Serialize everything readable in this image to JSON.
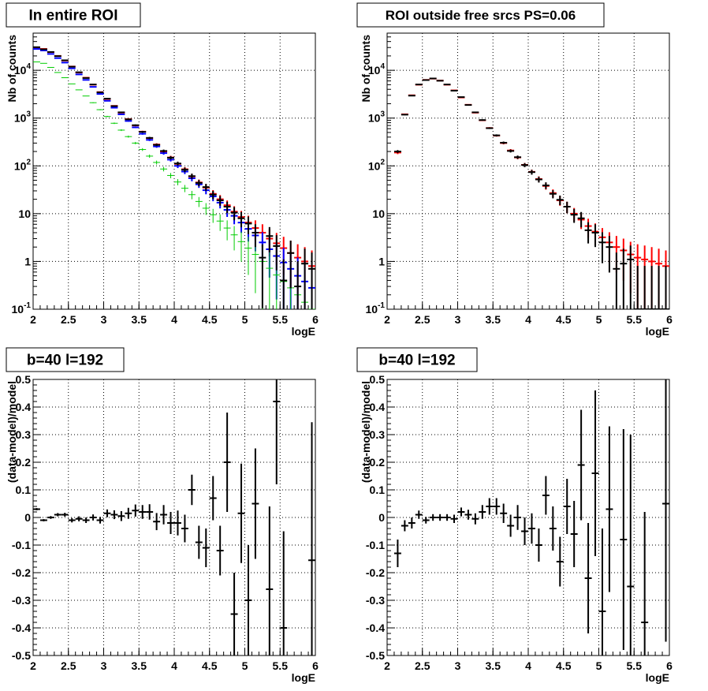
{
  "chart_data": [
    {
      "type": "scatter",
      "title": "In entire ROI",
      "xlabel": "logE",
      "ylabel": "Nb of counts",
      "xlim": [
        2,
        6
      ],
      "ylim": [
        0.1,
        60000
      ],
      "yscale": "log",
      "grid": true,
      "xticks": [
        "2",
        "2.5",
        "3",
        "3.5",
        "4",
        "4.5",
        "5",
        "5.5",
        "6"
      ],
      "yticks": [
        "10^-1",
        "1",
        "10",
        "10^2",
        "10^3",
        "10^4"
      ],
      "series": [
        {
          "color": "#ff0000",
          "x": [
            2.05,
            2.15,
            2.25,
            2.35,
            2.45,
            2.55,
            2.65,
            2.75,
            2.85,
            2.95,
            3.05,
            3.15,
            3.25,
            3.35,
            3.45,
            3.55,
            3.65,
            3.75,
            3.85,
            3.95,
            4.05,
            4.15,
            4.25,
            4.35,
            4.45,
            4.55,
            4.65,
            4.75,
            4.85,
            4.95,
            5.05,
            5.15,
            5.25,
            5.35,
            5.45,
            5.55,
            5.65,
            5.75,
            5.85,
            5.95
          ],
          "y": [
            30000,
            28000,
            24000,
            20000,
            16000,
            12000,
            9000,
            7000,
            5000,
            3500,
            2500,
            1800,
            1300,
            950,
            700,
            520,
            380,
            280,
            200,
            150,
            110,
            85,
            60,
            45,
            35,
            26,
            20,
            15,
            11,
            8.5,
            6.5,
            5,
            4,
            3,
            2.4,
            1.9,
            1.5,
            1.2,
            1,
            0.8
          ]
        },
        {
          "color": "#0000ff",
          "x": [
            2.05,
            2.15,
            2.25,
            2.35,
            2.45,
            2.55,
            2.65,
            2.75,
            2.85,
            2.95,
            3.05,
            3.15,
            3.25,
            3.35,
            3.45,
            3.55,
            3.65,
            3.75,
            3.85,
            3.95,
            4.05,
            4.15,
            4.25,
            4.35,
            4.45,
            4.55,
            4.65,
            4.75,
            4.85,
            4.95,
            5.05,
            5.15,
            5.25,
            5.35,
            5.45,
            5.55,
            5.65,
            5.75,
            5.85,
            5.95
          ],
          "y": [
            28000,
            26000,
            22000,
            18000,
            14500,
            11000,
            8200,
            6300,
            4500,
            3200,
            2300,
            1650,
            1200,
            870,
            640,
            470,
            350,
            255,
            185,
            135,
            100,
            76,
            55,
            41,
            31,
            23,
            17,
            12,
            9,
            6.5,
            4.8,
            3.5,
            2.5,
            1.8,
            1.3,
            0.95,
            0.7,
            0.5,
            0.38,
            0.28
          ]
        },
        {
          "color": "#00cc00",
          "x": [
            2.05,
            2.15,
            2.25,
            2.35,
            2.45,
            2.55,
            2.65,
            2.75,
            2.85,
            2.95,
            3.05,
            3.15,
            3.25,
            3.35,
            3.45,
            3.55,
            3.65,
            3.75,
            3.85,
            3.95,
            4.05,
            4.15,
            4.25,
            4.35,
            4.45,
            4.55,
            4.65,
            4.75,
            4.85,
            4.95,
            5.05,
            5.15,
            5.25,
            5.35,
            5.45,
            5.55,
            5.65,
            5.75,
            5.85,
            5.95
          ],
          "y": [
            15000,
            14000,
            11500,
            9000,
            7000,
            5200,
            3900,
            2900,
            2100,
            1500,
            1080,
            780,
            560,
            410,
            300,
            220,
            160,
            118,
            86,
            63,
            46,
            34,
            25,
            18,
            13,
            9.5,
            7,
            5,
            3.6,
            2.6,
            1.9,
            1.4,
            1,
            0.72,
            0.52,
            0.38,
            0.28,
            0.2,
            0.14,
            0.1
          ]
        },
        {
          "color": "#000000",
          "x": [
            2.05,
            2.15,
            2.25,
            2.35,
            2.45,
            2.55,
            2.65,
            2.75,
            2.85,
            2.95,
            3.05,
            3.15,
            3.25,
            3.35,
            3.45,
            3.55,
            3.65,
            3.75,
            3.85,
            3.95,
            4.05,
            4.15,
            4.25,
            4.35,
            4.45,
            4.55,
            4.65,
            4.75,
            4.85,
            4.95,
            5.05,
            5.15,
            5.25,
            5.35,
            5.45,
            5.55,
            5.65,
            5.75,
            5.85,
            5.95
          ],
          "y": [
            30500,
            27500,
            24200,
            19800,
            16200,
            11900,
            9100,
            6900,
            5050,
            3450,
            2550,
            1780,
            1320,
            940,
            710,
            515,
            385,
            275,
            205,
            148,
            112,
            83,
            61,
            44,
            36,
            25,
            19,
            14,
            10.5,
            8,
            6.2,
            4,
            1.2,
            3.4,
            2.1,
            0.4,
            1.5,
            0.3,
            0.9,
            0.7
          ]
        }
      ]
    },
    {
      "type": "scatter",
      "title": "ROI outside free srcs PS=0.06",
      "xlabel": "logE",
      "ylabel": "Nb of counts",
      "xlim": [
        2,
        6
      ],
      "ylim": [
        0.1,
        60000
      ],
      "yscale": "log",
      "grid": true,
      "xticks": [
        "2",
        "2.5",
        "3",
        "3.5",
        "4",
        "4.5",
        "5",
        "5.5",
        "6"
      ],
      "yticks": [
        "10^-1",
        "1",
        "10",
        "10^2",
        "10^3",
        "10^4"
      ],
      "series": [
        {
          "color": "#ff0000",
          "x": [
            2.15,
            2.25,
            2.35,
            2.45,
            2.55,
            2.65,
            2.75,
            2.85,
            2.95,
            3.05,
            3.15,
            3.25,
            3.35,
            3.45,
            3.55,
            3.65,
            3.75,
            3.85,
            3.95,
            4.05,
            4.15,
            4.25,
            4.35,
            4.45,
            4.55,
            4.65,
            4.75,
            4.85,
            4.95,
            5.05,
            5.15,
            5.25,
            5.35,
            5.45,
            5.55,
            5.65,
            5.75,
            5.85,
            5.95
          ],
          "y": [
            190,
            1200,
            3000,
            5000,
            6300,
            6700,
            6100,
            5000,
            3800,
            2700,
            1900,
            1300,
            900,
            620,
            430,
            300,
            210,
            150,
            105,
            75,
            53,
            38,
            27,
            19,
            14,
            10,
            7.5,
            5.5,
            4.2,
            3.2,
            2.5,
            2,
            1.7,
            1.4,
            1.2,
            1.1,
            1,
            0.9,
            0.8
          ]
        },
        {
          "color": "#000000",
          "x": [
            2.15,
            2.25,
            2.35,
            2.45,
            2.55,
            2.65,
            2.75,
            2.85,
            2.95,
            3.05,
            3.15,
            3.25,
            3.35,
            3.45,
            3.55,
            3.65,
            3.75,
            3.85,
            3.95,
            4.05,
            4.15,
            4.25,
            4.35,
            4.45,
            4.55,
            4.65,
            4.75,
            4.85,
            4.95,
            5.05,
            5.15,
            5.25,
            5.35,
            5.45,
            5.55,
            5.65,
            5.75,
            5.85,
            5.95
          ],
          "y": [
            200,
            1180,
            2950,
            5050,
            6250,
            6750,
            6050,
            5050,
            3750,
            2750,
            1880,
            1320,
            910,
            615,
            435,
            305,
            205,
            152,
            104,
            74,
            52,
            39,
            26,
            19.5,
            14,
            9.5,
            8,
            4.5,
            4,
            2.5,
            2,
            0.7,
            0.9,
            1.1,
            0.1,
            0.1,
            0.1,
            0.1,
            0.1
          ]
        }
      ]
    },
    {
      "type": "scatter",
      "title": "b=40 l=192",
      "xlabel": "logE",
      "ylabel": "(data-model)/model",
      "xlim": [
        2,
        6
      ],
      "ylim": [
        -0.5,
        0.5
      ],
      "grid": true,
      "xticks": [
        "2",
        "2.5",
        "3",
        "3.5",
        "4",
        "4.5",
        "5",
        "5.5",
        "6"
      ],
      "yticks": [
        "-0.5",
        "-0.4",
        "-0.3",
        "-0.2",
        "-0.1",
        "0",
        "0.1",
        "0.2",
        "0.3",
        "0.4",
        "0.5"
      ],
      "series": [
        {
          "color": "#000000",
          "x": [
            2.05,
            2.15,
            2.25,
            2.35,
            2.45,
            2.55,
            2.65,
            2.75,
            2.85,
            2.95,
            3.05,
            3.15,
            3.25,
            3.35,
            3.45,
            3.55,
            3.65,
            3.75,
            3.85,
            3.95,
            4.05,
            4.15,
            4.25,
            4.35,
            4.45,
            4.55,
            4.65,
            4.75,
            4.85,
            4.95,
            5.05,
            5.15,
            5.25,
            5.35,
            5.45,
            5.55,
            5.65,
            5.75,
            5.85,
            5.95
          ],
          "y": [
            0.03,
            -0.01,
            0.0,
            0.01,
            0.01,
            -0.01,
            -0.005,
            -0.01,
            0.0,
            -0.01,
            0.015,
            0.01,
            0.005,
            0.015,
            0.025,
            0.02,
            0.02,
            -0.015,
            0.01,
            -0.02,
            -0.02,
            -0.04,
            0.1,
            -0.09,
            -0.11,
            0.07,
            -0.12,
            0.2,
            -0.35,
            0.015,
            -0.3,
            0.05,
            -0.5,
            -0.26,
            0.42,
            -0.4,
            0.0,
            0.0,
            0.0,
            -0.155
          ],
          "err": [
            0.004,
            0.004,
            0.005,
            0.006,
            0.007,
            0.008,
            0.009,
            0.01,
            0.011,
            0.012,
            0.014,
            0.016,
            0.018,
            0.02,
            0.022,
            0.025,
            0.028,
            0.031,
            0.035,
            0.04,
            0.045,
            0.05,
            0.055,
            0.06,
            0.07,
            0.08,
            0.09,
            0.18,
            0.15,
            0.18,
            0.2,
            0.2,
            0.2,
            0.3,
            0.3,
            0.35,
            0.0,
            0.0,
            0.0,
            0.5
          ],
          "visible": [
            true,
            true,
            true,
            true,
            true,
            true,
            true,
            true,
            true,
            true,
            true,
            true,
            true,
            true,
            true,
            true,
            true,
            true,
            true,
            true,
            true,
            true,
            true,
            true,
            true,
            true,
            true,
            true,
            true,
            true,
            true,
            true,
            false,
            true,
            true,
            true,
            false,
            false,
            false,
            true
          ]
        }
      ]
    },
    {
      "type": "scatter",
      "title": "b=40 l=192",
      "xlabel": "logE",
      "ylabel": "(data-model)/model",
      "xlim": [
        2,
        6
      ],
      "ylim": [
        -0.5,
        0.5
      ],
      "grid": true,
      "xticks": [
        "2",
        "2.5",
        "3",
        "3.5",
        "4",
        "4.5",
        "5",
        "5.5",
        "6"
      ],
      "yticks": [
        "-0.5",
        "-0.4",
        "-0.3",
        "-0.2",
        "-0.1",
        "0",
        "0.1",
        "0.2",
        "0.3",
        "0.4",
        "0.5"
      ],
      "series": [
        {
          "color": "#000000",
          "x": [
            2.15,
            2.25,
            2.35,
            2.45,
            2.55,
            2.65,
            2.75,
            2.85,
            2.95,
            3.05,
            3.15,
            3.25,
            3.35,
            3.45,
            3.55,
            3.65,
            3.75,
            3.85,
            3.95,
            4.05,
            4.15,
            4.25,
            4.35,
            4.45,
            4.55,
            4.65,
            4.75,
            4.85,
            4.95,
            5.05,
            5.15,
            5.25,
            5.35,
            5.45,
            5.55,
            5.65,
            5.75,
            5.85,
            5.95
          ],
          "y": [
            -0.13,
            -0.03,
            -0.02,
            0.01,
            -0.01,
            0.0,
            0.0,
            0.0,
            -0.005,
            0.02,
            0.01,
            -0.005,
            0.02,
            0.04,
            0.04,
            0.015,
            -0.03,
            0.0,
            -0.05,
            -0.04,
            -0.1,
            0.08,
            -0.04,
            -0.16,
            0.04,
            -0.06,
            0.19,
            -0.22,
            0.16,
            -0.34,
            0.03,
            -0.5,
            -0.08,
            -0.25,
            -0.5,
            -0.38,
            0.0,
            0.0,
            0.05
          ],
          "err": [
            0.05,
            0.02,
            0.02,
            0.015,
            0.012,
            0.012,
            0.012,
            0.012,
            0.015,
            0.016,
            0.018,
            0.02,
            0.025,
            0.03,
            0.03,
            0.035,
            0.04,
            0.045,
            0.05,
            0.055,
            0.06,
            0.07,
            0.08,
            0.09,
            0.1,
            0.12,
            0.2,
            0.2,
            0.3,
            0.3,
            0.3,
            0.0,
            0.4,
            0.55,
            0.0,
            0.4,
            0.0,
            0.0,
            0.5
          ],
          "visible": [
            true,
            true,
            true,
            true,
            true,
            true,
            true,
            true,
            true,
            true,
            true,
            true,
            true,
            true,
            true,
            true,
            true,
            true,
            true,
            true,
            true,
            true,
            true,
            true,
            true,
            true,
            true,
            true,
            true,
            true,
            true,
            false,
            true,
            true,
            false,
            true,
            false,
            false,
            true
          ]
        }
      ]
    }
  ]
}
